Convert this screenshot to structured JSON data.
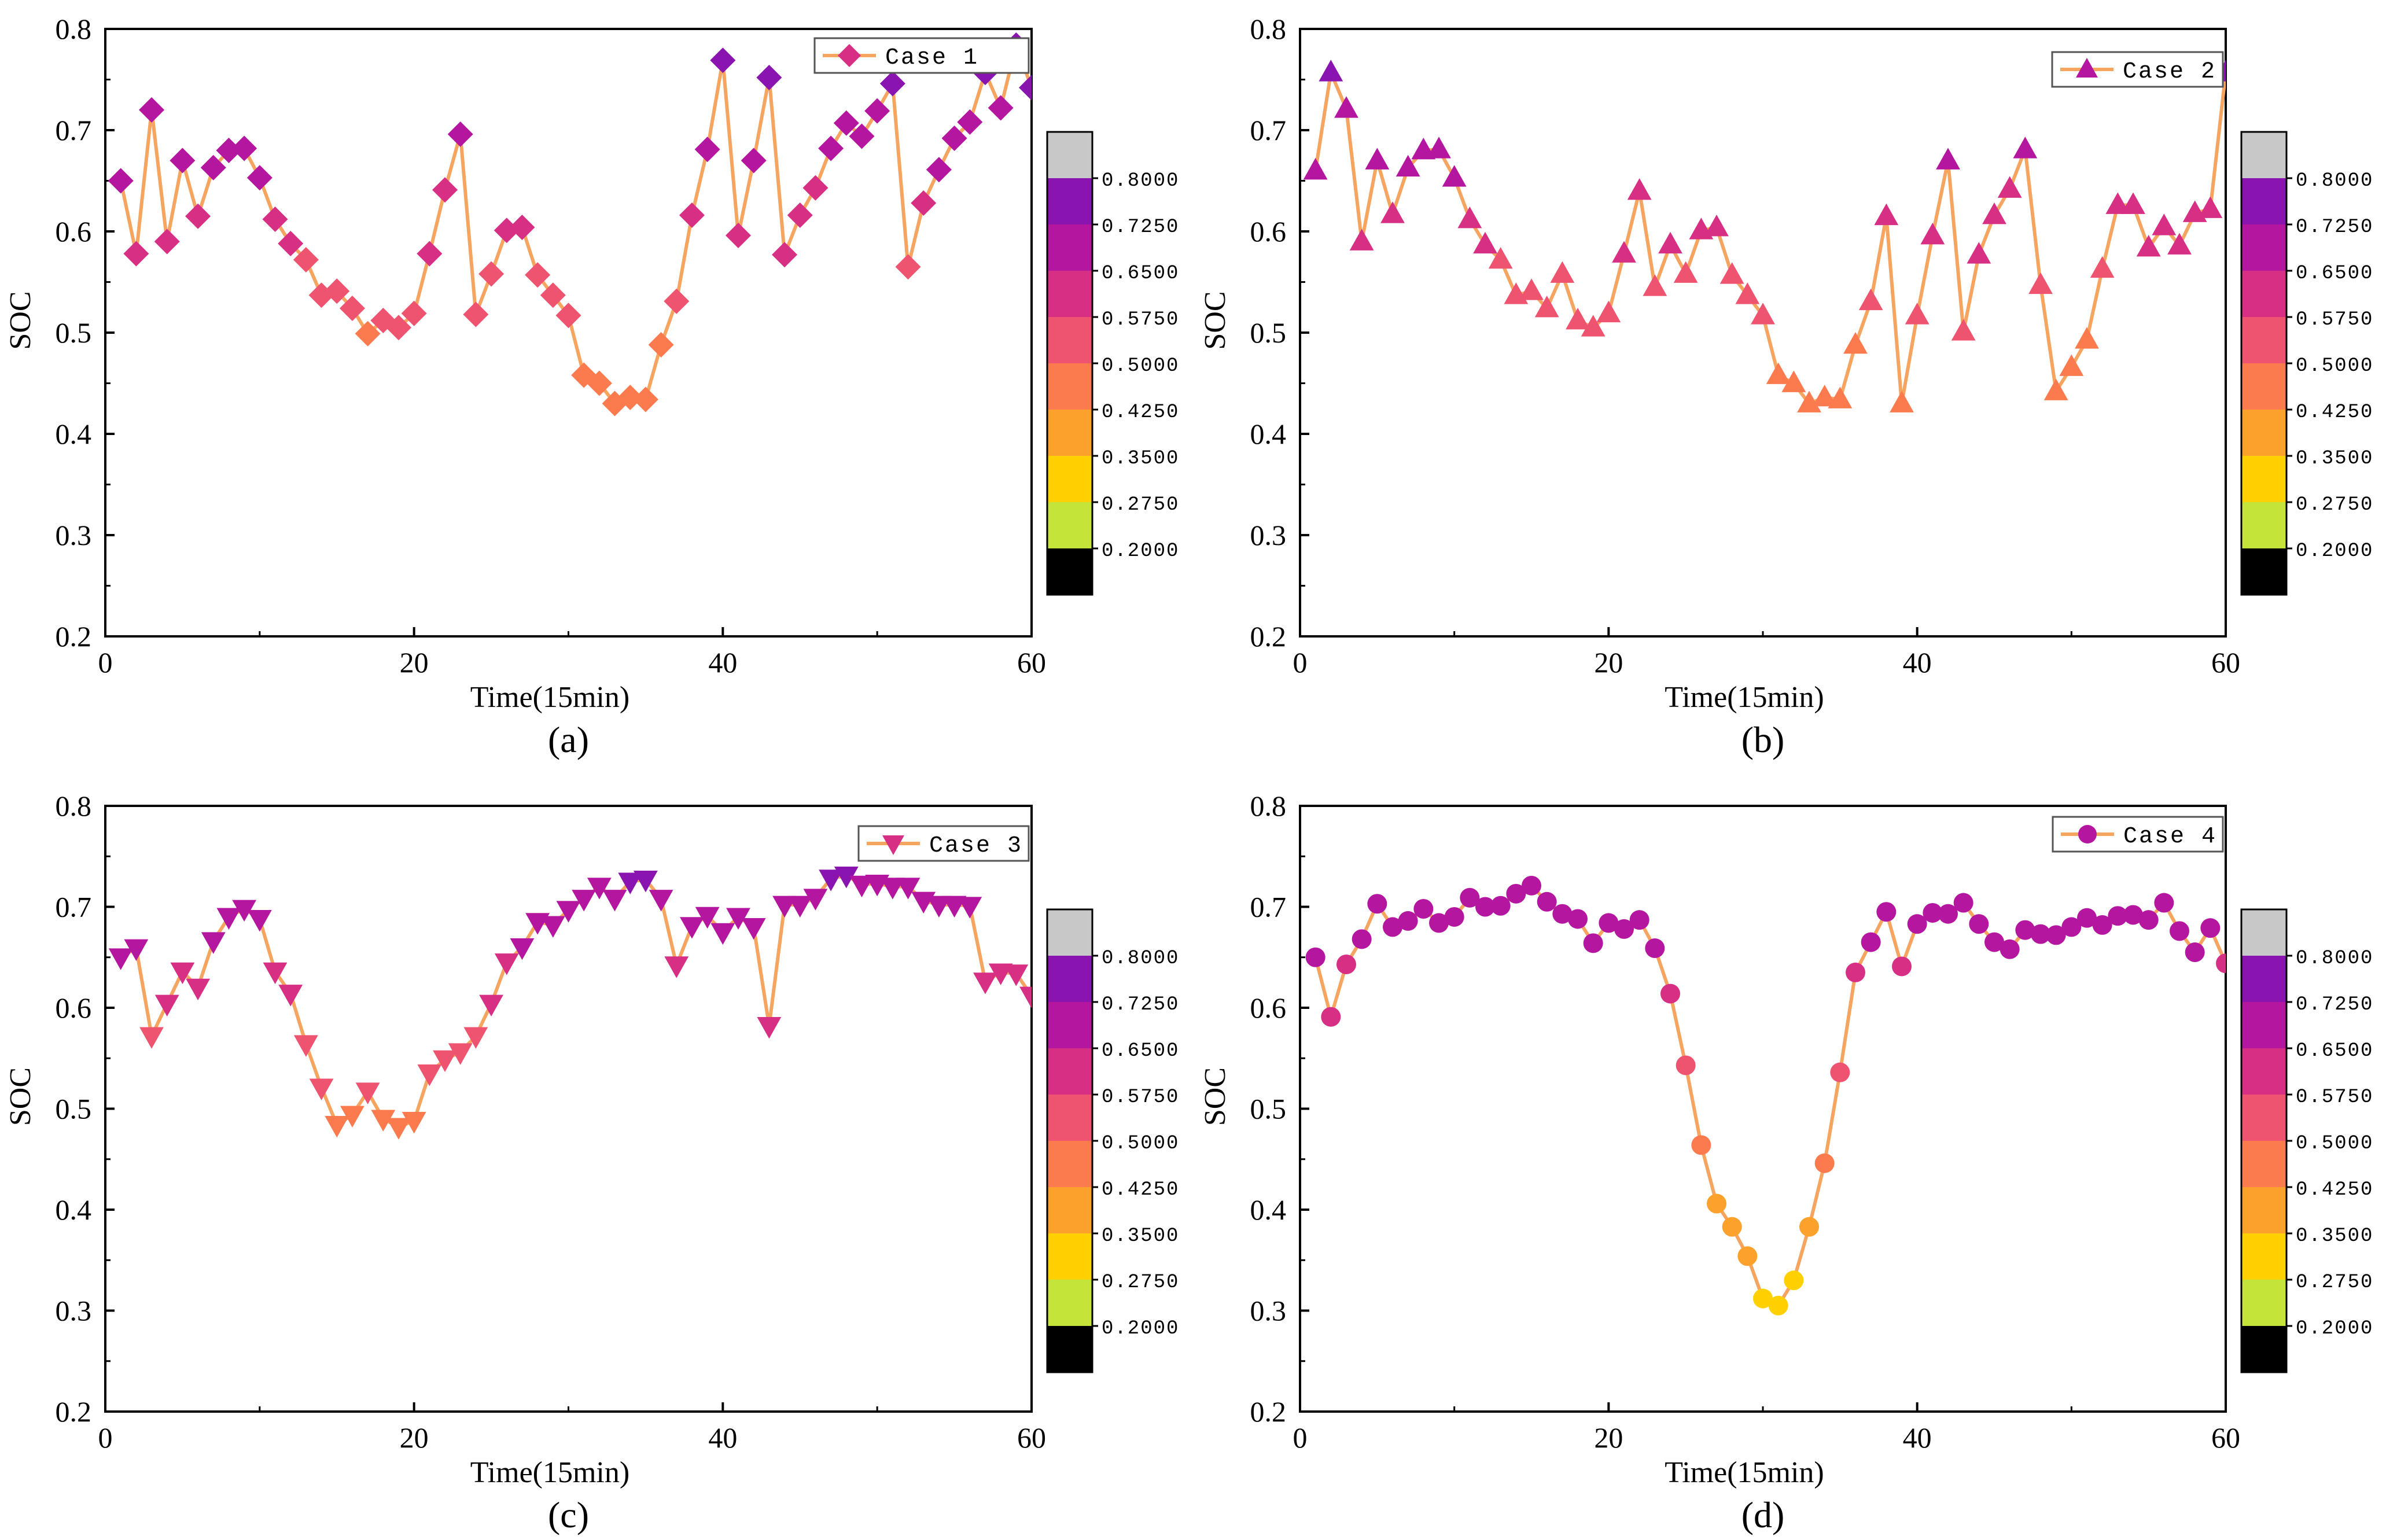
{
  "figure": {
    "colors": {
      "line": "#f6a561",
      "axis": "#000000",
      "colorbar_top": "#c8c8c8",
      "colorbar_bottom": "#000000"
    },
    "colorbar": {
      "ticks": [
        "0.8000",
        "0.7250",
        "0.6500",
        "0.5750",
        "0.5000",
        "0.4250",
        "0.3500",
        "0.2750",
        "0.2000"
      ],
      "bands": [
        {
          "min": 0.725,
          "max": 0.8,
          "color": "#8a14b0"
        },
        {
          "min": 0.65,
          "max": 0.725,
          "color": "#b5169f"
        },
        {
          "min": 0.575,
          "max": 0.65,
          "color": "#d72f84"
        },
        {
          "min": 0.5,
          "max": 0.575,
          "color": "#ee5470"
        },
        {
          "min": 0.425,
          "max": 0.5,
          "color": "#fb7b4f"
        },
        {
          "min": 0.35,
          "max": 0.425,
          "color": "#fba12c"
        },
        {
          "min": 0.275,
          "max": 0.35,
          "color": "#ffd100"
        },
        {
          "min": 0.2,
          "max": 0.275,
          "color": "#c4e43a"
        }
      ]
    }
  },
  "chart_data": [
    {
      "type": "line",
      "panel_label": "(a)",
      "legend": "Case 1",
      "marker": "diamond",
      "xlabel": "Time(15min)",
      "ylabel": "SOC",
      "xlim": [
        0,
        60
      ],
      "ylim": [
        0.2,
        0.8
      ],
      "xticks": [
        "0",
        "20",
        "40",
        "60"
      ],
      "yticks": [
        "0.2",
        "0.3",
        "0.4",
        "0.5",
        "0.6",
        "0.7",
        "0.8"
      ],
      "x": [
        1,
        2,
        3,
        4,
        5,
        6,
        7,
        8,
        9,
        10,
        11,
        12,
        13,
        14,
        15,
        16,
        17,
        18,
        19,
        20,
        21,
        22,
        23,
        24,
        25,
        26,
        27,
        28,
        29,
        30,
        31,
        32,
        33,
        34,
        35,
        36,
        37,
        38,
        39,
        40,
        41,
        42,
        43,
        44,
        45,
        46,
        47,
        48,
        49,
        50,
        51,
        52,
        53,
        54,
        55,
        56,
        57,
        58,
        59,
        60
      ],
      "y": [
        0.65,
        0.578,
        0.72,
        0.59,
        0.67,
        0.615,
        0.663,
        0.68,
        0.682,
        0.653,
        0.612,
        0.588,
        0.572,
        0.537,
        0.541,
        0.524,
        0.499,
        0.512,
        0.505,
        0.519,
        0.578,
        0.641,
        0.696,
        0.518,
        0.558,
        0.601,
        0.604,
        0.557,
        0.537,
        0.517,
        0.458,
        0.45,
        0.43,
        0.436,
        0.434,
        0.488,
        0.531,
        0.616,
        0.681,
        0.769,
        0.596,
        0.67,
        0.752,
        0.577,
        0.616,
        0.643,
        0.682,
        0.707,
        0.694,
        0.719,
        0.746,
        0.565,
        0.628,
        0.661,
        0.692,
        0.708,
        0.757,
        0.722,
        0.784,
        0.742
      ]
    },
    {
      "type": "line",
      "panel_label": "(b)",
      "legend": "Case 2",
      "marker": "triangle-up",
      "xlabel": "Time(15min)",
      "ylabel": "SOC",
      "xlim": [
        0,
        60
      ],
      "ylim": [
        0.2,
        0.8
      ],
      "xticks": [
        "0",
        "20",
        "40",
        "60"
      ],
      "yticks": [
        "0.2",
        "0.3",
        "0.4",
        "0.5",
        "0.6",
        "0.7",
        "0.8"
      ],
      "x": [
        1,
        2,
        3,
        4,
        5,
        6,
        7,
        8,
        9,
        10,
        11,
        12,
        13,
        14,
        15,
        16,
        17,
        18,
        19,
        20,
        21,
        22,
        23,
        24,
        25,
        26,
        27,
        28,
        29,
        30,
        31,
        32,
        33,
        34,
        35,
        36,
        37,
        38,
        39,
        40,
        41,
        42,
        43,
        44,
        45,
        46,
        47,
        48,
        49,
        50,
        51,
        52,
        53,
        54,
        55,
        56,
        57,
        58,
        59,
        60
      ],
      "y": [
        0.66,
        0.757,
        0.721,
        0.59,
        0.67,
        0.617,
        0.663,
        0.68,
        0.681,
        0.653,
        0.612,
        0.587,
        0.572,
        0.537,
        0.541,
        0.524,
        0.558,
        0.512,
        0.505,
        0.519,
        0.578,
        0.64,
        0.545,
        0.587,
        0.558,
        0.601,
        0.604,
        0.557,
        0.537,
        0.517,
        0.458,
        0.45,
        0.43,
        0.436,
        0.434,
        0.488,
        0.531,
        0.615,
        0.43,
        0.517,
        0.596,
        0.67,
        0.501,
        0.577,
        0.616,
        0.642,
        0.681,
        0.547,
        0.442,
        0.466,
        0.493,
        0.563,
        0.626,
        0.626,
        0.584,
        0.605,
        0.586,
        0.618,
        0.622,
        0.757
      ]
    },
    {
      "type": "line",
      "panel_label": "(c)",
      "legend": "Case 3",
      "marker": "triangle-down",
      "xlabel": "Time(15min)",
      "ylabel": "SOC",
      "xlim": [
        0,
        60
      ],
      "ylim": [
        0.2,
        0.8
      ],
      "xticks": [
        "0",
        "20",
        "40",
        "60"
      ],
      "yticks": [
        "0.2",
        "0.3",
        "0.4",
        "0.5",
        "0.6",
        "0.7",
        "0.8"
      ],
      "x": [
        1,
        2,
        3,
        4,
        5,
        6,
        7,
        8,
        9,
        10,
        11,
        12,
        13,
        14,
        15,
        16,
        17,
        18,
        19,
        20,
        21,
        22,
        23,
        24,
        25,
        26,
        27,
        28,
        29,
        30,
        31,
        32,
        33,
        34,
        35,
        36,
        37,
        38,
        39,
        40,
        41,
        42,
        43,
        44,
        45,
        46,
        47,
        48,
        49,
        50,
        51,
        52,
        53,
        54,
        55,
        56,
        57,
        58,
        59,
        60
      ],
      "y": [
        0.65,
        0.659,
        0.572,
        0.604,
        0.636,
        0.62,
        0.666,
        0.69,
        0.698,
        0.688,
        0.636,
        0.614,
        0.564,
        0.521,
        0.484,
        0.494,
        0.517,
        0.49,
        0.482,
        0.488,
        0.535,
        0.549,
        0.556,
        0.572,
        0.604,
        0.645,
        0.66,
        0.685,
        0.682,
        0.697,
        0.708,
        0.72,
        0.708,
        0.725,
        0.727,
        0.708,
        0.642,
        0.681,
        0.691,
        0.675,
        0.69,
        0.68,
        0.582,
        0.702,
        0.702,
        0.709,
        0.728,
        0.731,
        0.722,
        0.723,
        0.72,
        0.72,
        0.706,
        0.702,
        0.702,
        0.701,
        0.626,
        0.635,
        0.634,
        0.612
      ]
    },
    {
      "type": "line",
      "panel_label": "(d)",
      "legend": "Case 4",
      "marker": "circle",
      "xlabel": "Time(15min)",
      "ylabel": "SOC",
      "xlim": [
        0,
        60
      ],
      "ylim": [
        0.2,
        0.8
      ],
      "xticks": [
        "0",
        "20",
        "40",
        "60"
      ],
      "yticks": [
        "0.2",
        "0.3",
        "0.4",
        "0.5",
        "0.6",
        "0.7",
        "0.8"
      ],
      "x": [
        1,
        2,
        3,
        4,
        5,
        6,
        7,
        8,
        9,
        10,
        11,
        12,
        13,
        14,
        15,
        16,
        17,
        18,
        19,
        20,
        21,
        22,
        23,
        24,
        25,
        26,
        27,
        28,
        29,
        30,
        31,
        32,
        33,
        34,
        35,
        36,
        37,
        38,
        39,
        40,
        41,
        42,
        43,
        44,
        45,
        46,
        47,
        48,
        49,
        50,
        51,
        52,
        53,
        54,
        55,
        56,
        57,
        58,
        59,
        60
      ],
      "y": [
        0.65,
        0.591,
        0.643,
        0.668,
        0.703,
        0.68,
        0.686,
        0.698,
        0.684,
        0.69,
        0.709,
        0.7,
        0.701,
        0.713,
        0.721,
        0.705,
        0.693,
        0.688,
        0.664,
        0.684,
        0.678,
        0.687,
        0.659,
        0.614,
        0.543,
        0.464,
        0.406,
        0.383,
        0.354,
        0.312,
        0.305,
        0.33,
        0.383,
        0.446,
        0.536,
        0.635,
        0.665,
        0.695,
        0.641,
        0.683,
        0.694,
        0.693,
        0.704,
        0.683,
        0.665,
        0.658,
        0.677,
        0.673,
        0.672,
        0.68,
        0.689,
        0.682,
        0.691,
        0.692,
        0.687,
        0.704,
        0.676,
        0.655,
        0.679,
        0.644
      ]
    }
  ]
}
